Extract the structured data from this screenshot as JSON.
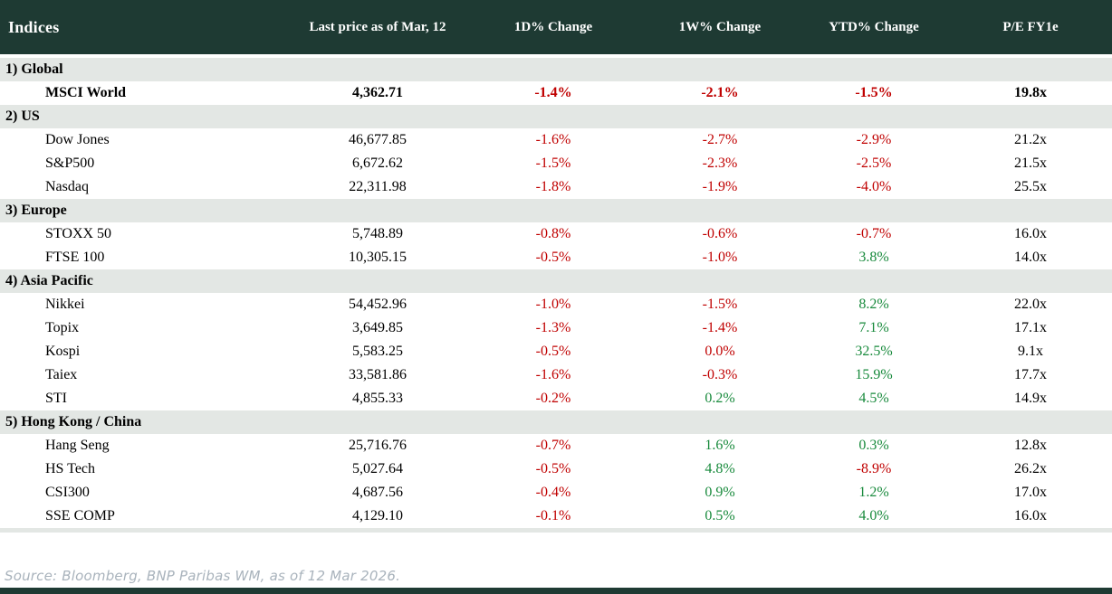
{
  "chart_data": {
    "type": "table",
    "title": "Indices",
    "columns": [
      "Indices",
      "Last price as of Mar, 12",
      "1D% Change",
      "1W% Change",
      "YTD% Change",
      "P/E FY1e"
    ],
    "sections": [
      {
        "label": "1) Global",
        "rows": [
          {
            "name": "MSCI World",
            "last_price": "4,362.71",
            "d1": "-1.4%",
            "d1_color": "negative",
            "w1": "-2.1%",
            "w1_color": "negative",
            "ytd": "-1.5%",
            "ytd_color": "negative",
            "pe": "19.8x",
            "bold": true
          }
        ]
      },
      {
        "label": "2) US",
        "rows": [
          {
            "name": "Dow Jones",
            "last_price": "46,677.85",
            "d1": "-1.6%",
            "d1_color": "negative",
            "w1": "-2.7%",
            "w1_color": "negative",
            "ytd": "-2.9%",
            "ytd_color": "negative",
            "pe": "21.2x",
            "bold": false
          },
          {
            "name": "S&P500",
            "last_price": "6,672.62",
            "d1": "-1.5%",
            "d1_color": "negative",
            "w1": "-2.3%",
            "w1_color": "negative",
            "ytd": "-2.5%",
            "ytd_color": "negative",
            "pe": "21.5x",
            "bold": false
          },
          {
            "name": "Nasdaq",
            "last_price": "22,311.98",
            "d1": "-1.8%",
            "d1_color": "negative",
            "w1": "-1.9%",
            "w1_color": "negative",
            "ytd": "-4.0%",
            "ytd_color": "negative",
            "pe": "25.5x",
            "bold": false
          }
        ]
      },
      {
        "label": "3) Europe",
        "rows": [
          {
            "name": "STOXX 50",
            "last_price": "5,748.89",
            "d1": "-0.8%",
            "d1_color": "negative",
            "w1": "-0.6%",
            "w1_color": "negative",
            "ytd": "-0.7%",
            "ytd_color": "negative",
            "pe": "16.0x",
            "bold": false
          },
          {
            "name": "FTSE 100",
            "last_price": "10,305.15",
            "d1": "-0.5%",
            "d1_color": "negative",
            "w1": "-1.0%",
            "w1_color": "negative",
            "ytd": "3.8%",
            "ytd_color": "positive",
            "pe": "14.0x",
            "bold": false
          }
        ]
      },
      {
        "label": "4) Asia Pacific",
        "rows": [
          {
            "name": "Nikkei",
            "last_price": "54,452.96",
            "d1": "-1.0%",
            "d1_color": "negative",
            "w1": "-1.5%",
            "w1_color": "negative",
            "ytd": "8.2%",
            "ytd_color": "positive",
            "pe": "22.0x",
            "bold": false
          },
          {
            "name": "Topix",
            "last_price": "3,649.85",
            "d1": "-1.3%",
            "d1_color": "negative",
            "w1": "-1.4%",
            "w1_color": "negative",
            "ytd": "7.1%",
            "ytd_color": "positive",
            "pe": "17.1x",
            "bold": false
          },
          {
            "name": "Kospi",
            "last_price": "5,583.25",
            "d1": "-0.5%",
            "d1_color": "negative",
            "w1": "0.0%",
            "w1_color": "negative",
            "ytd": "32.5%",
            "ytd_color": "positive",
            "pe": "9.1x",
            "bold": false
          },
          {
            "name": "Taiex",
            "last_price": "33,581.86",
            "d1": "-1.6%",
            "d1_color": "negative",
            "w1": "-0.3%",
            "w1_color": "negative",
            "ytd": "15.9%",
            "ytd_color": "positive",
            "pe": "17.7x",
            "bold": false
          },
          {
            "name": "STI",
            "last_price": "4,855.33",
            "d1": "-0.2%",
            "d1_color": "negative",
            "w1": "0.2%",
            "w1_color": "positive",
            "ytd": "4.5%",
            "ytd_color": "positive",
            "pe": "14.9x",
            "bold": false
          }
        ]
      },
      {
        "label": "5) Hong Kong / China",
        "rows": [
          {
            "name": "Hang Seng",
            "last_price": "25,716.76",
            "d1": "-0.7%",
            "d1_color": "negative",
            "w1": "1.6%",
            "w1_color": "positive",
            "ytd": "0.3%",
            "ytd_color": "positive",
            "pe": "12.8x",
            "bold": false
          },
          {
            "name": "HS Tech",
            "last_price": "5,027.64",
            "d1": "-0.5%",
            "d1_color": "negative",
            "w1": "4.8%",
            "w1_color": "positive",
            "ytd": "-8.9%",
            "ytd_color": "negative",
            "pe": "26.2x",
            "bold": false
          },
          {
            "name": "CSI300",
            "last_price": "4,687.56",
            "d1": "-0.4%",
            "d1_color": "negative",
            "w1": "0.9%",
            "w1_color": "positive",
            "ytd": "1.2%",
            "ytd_color": "positive",
            "pe": "17.0x",
            "bold": false
          },
          {
            "name": "SSE COMP",
            "last_price": "4,129.10",
            "d1": "-0.1%",
            "d1_color": "negative",
            "w1": "0.5%",
            "w1_color": "positive",
            "ytd": "4.0%",
            "ytd_color": "positive",
            "pe": "16.0x",
            "bold": false
          }
        ]
      }
    ]
  },
  "source_note": "Source: Bloomberg, BNP Paribas WM, as of 12 Mar 2026.",
  "colors": {
    "header_bg": "#1e3a33",
    "section_bg": "#e3e7e4",
    "negative": "#c00000",
    "positive": "#188a3c",
    "source_text": "#a9b3bc",
    "footer_bar": "#1e3a33"
  }
}
